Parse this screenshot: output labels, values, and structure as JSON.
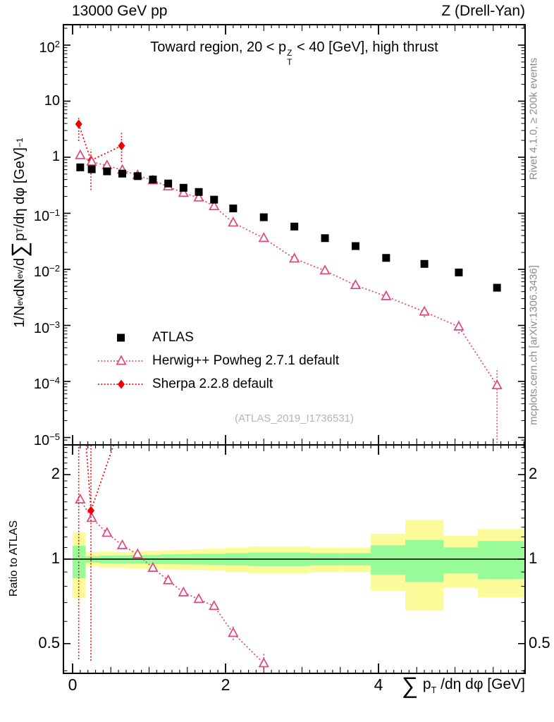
{
  "header": {
    "beam": "13000 GeV pp",
    "process": "Z (Drell-Yan)"
  },
  "side_notes": {
    "top": "Rivet 4.1.0, ≥ 200k events",
    "bottom": "mcplots.cern.ch [arXiv:1306.3436]"
  },
  "watermark": "(ATLAS_2019_I1736531)",
  "titles": {
    "main_parts": [
      {
        "t": "Toward region, 20 < p"
      },
      {
        "c": "zstack",
        "top": "Z",
        "bot": "T"
      },
      {
        "t": " < 40 [GeV], high thrust"
      }
    ],
    "y_main_parts": [
      {
        "t": "1/N"
      },
      {
        "t": "ev",
        "c": "sub"
      },
      {
        "t": " dN"
      },
      {
        "t": "ev",
        "c": "sub"
      },
      {
        "t": "/d"
      },
      {
        "t": "∑",
        "c": "big"
      },
      {
        "t": " p"
      },
      {
        "t": "T",
        "c": "sub"
      },
      {
        "t": " /dη dφ  [GeV]"
      },
      {
        "t": "−1",
        "c": "sup"
      }
    ],
    "x_parts": [
      {
        "t": "∑",
        "c": "big"
      },
      {
        "t": " p"
      },
      {
        "t": "T",
        "c": "sub"
      },
      {
        "t": " /dη dφ [GeV]"
      }
    ],
    "ratio_y": "Ratio to ATLAS"
  },
  "legend": [
    {
      "label": "ATLAS",
      "marker": "square",
      "line": false
    },
    {
      "label": "Herwig++ Powheg 2.7.1 default",
      "marker": "triangle-open",
      "line": true
    },
    {
      "label": "Sherpa 2.2.8 default",
      "marker": "diamond",
      "line": true
    }
  ],
  "colors": {
    "atlas": "#000000",
    "herwig": "#e0457b",
    "sherpa": "#ee0000",
    "band_inner_green": "#97fb97",
    "band_outer_yellow": "#fbfb9a",
    "note_gray": "#8c8c8c",
    "watermark_gray": "#b5b5b5"
  },
  "axes": {
    "x_tick_labels": [
      {
        "v": 0,
        "t": "0"
      },
      {
        "v": 2,
        "t": "2"
      },
      {
        "v": 4,
        "t": "4"
      }
    ],
    "y_main_tick_labels": [
      {
        "v": 100,
        "base": "10",
        "exp": "2"
      },
      {
        "v": 10,
        "base": "10",
        "exp": ""
      },
      {
        "v": 1,
        "base": "1",
        "exp": ""
      },
      {
        "v": 0.1,
        "base": "10",
        "exp": "−1"
      },
      {
        "v": 0.01,
        "base": "10",
        "exp": "−2"
      },
      {
        "v": 0.001,
        "base": "10",
        "exp": "−3"
      },
      {
        "v": 0.0001,
        "base": "10",
        "exp": "−4"
      },
      {
        "v": 1e-05,
        "base": "10",
        "exp": "−5"
      }
    ],
    "ratio_tick_labels": [
      {
        "v": 2,
        "t": "2"
      },
      {
        "v": 1,
        "t": "1"
      },
      {
        "v": 0.5,
        "t": "0.5"
      }
    ]
  },
  "chart_data": {
    "type": "scatter",
    "title": "Toward region, 20 < pT^Z < 40 [GeV], high thrust",
    "xlabel": "Sum pT /deta dphi [GeV]",
    "ylabel": "1/N_ev dN_ev/dSum pT /deta dphi [GeV]^-1",
    "ratio_ylabel": "Ratio to ATLAS",
    "x_axis": {
      "scale": "linear",
      "min": -0.12,
      "max": 5.92,
      "labeled_ticks": [
        0,
        2,
        4
      ]
    },
    "y_axis_main": {
      "scale": "log",
      "min": 7.5e-06,
      "max": 230,
      "labeled_decades": [
        2,
        1,
        0,
        -1,
        -2,
        -3,
        -4,
        -5
      ]
    },
    "y_axis_ratio": {
      "scale": "log",
      "min": 0.392,
      "max": 2.55,
      "labeled_ticks": [
        2,
        1,
        0.5
      ]
    },
    "series": [
      {
        "name": "ATLAS",
        "marker": "square",
        "line": false,
        "x": [
          0.1,
          0.25,
          0.45,
          0.65,
          0.85,
          1.05,
          1.25,
          1.45,
          1.65,
          1.85,
          2.1,
          2.5,
          2.9,
          3.3,
          3.7,
          4.1,
          4.6,
          5.05,
          5.55
        ],
        "y": [
          0.66,
          0.61,
          0.56,
          0.51,
          0.46,
          0.4,
          0.34,
          0.285,
          0.24,
          0.175,
          0.122,
          0.085,
          0.058,
          0.036,
          0.026,
          0.016,
          0.0125,
          0.0088,
          0.0047
        ]
      },
      {
        "name": "Herwig++ Powheg 2.7.1 default",
        "marker": "triangle-open",
        "line": "dotted",
        "x": [
          0.1,
          0.25,
          0.45,
          0.65,
          0.85,
          1.05,
          1.25,
          1.45,
          1.65,
          1.85,
          2.1,
          2.5,
          2.9,
          3.3,
          3.7,
          4.1,
          4.6,
          5.05,
          5.55
        ],
        "y": [
          1.08,
          0.83,
          0.71,
          0.59,
          0.475,
          0.385,
          0.3,
          0.23,
          0.19,
          0.133,
          0.068,
          0.036,
          0.0155,
          0.0095,
          0.0052,
          0.0033,
          0.00175,
          0.00095,
          8.5e-05
        ],
        "err_lo": [
          null,
          null,
          null,
          null,
          null,
          null,
          null,
          null,
          null,
          null,
          null,
          null,
          null,
          null,
          null,
          null,
          0.0014,
          0.00072,
          8e-06
        ],
        "err_hi": [
          null,
          null,
          null,
          null,
          null,
          null,
          null,
          null,
          null,
          null,
          null,
          null,
          null,
          null,
          null,
          null,
          0.0021,
          0.00122,
          0.00017
        ]
      },
      {
        "name": "Sherpa 2.2.8 default",
        "marker": "diamond",
        "line": "dotted",
        "x": [
          0.08,
          0.24,
          0.64
        ],
        "y": [
          3.9,
          0.88,
          1.6
        ],
        "err_lo": [
          1.95,
          0.26,
          0.82
        ],
        "err_hi": [
          5.4,
          1.39,
          2.74
        ]
      }
    ],
    "ratio": {
      "reference_line": 1,
      "herwig": {
        "x": [
          0.1,
          0.25,
          0.45,
          0.65,
          0.85,
          1.05,
          1.25,
          1.45,
          1.65,
          1.85,
          2.1,
          2.5
        ],
        "r": [
          1.63,
          1.4,
          1.24,
          1.12,
          1.04,
          0.93,
          0.84,
          0.76,
          0.72,
          0.68,
          0.545,
          0.425
        ],
        "err_lo": [
          null,
          null,
          null,
          null,
          null,
          null,
          null,
          null,
          null,
          null,
          0.515,
          0.39
        ],
        "err_hi": [
          null,
          null,
          null,
          null,
          null,
          null,
          null,
          null,
          null,
          null,
          0.575,
          0.46
        ]
      },
      "sherpa": {
        "x": [
          0.08,
          0.24,
          0.64
        ],
        "r": [
          5.9,
          1.49,
          3.08
        ],
        "err_lo": [
          0.44,
          0.435,
          null
        ],
        "err_hi": [
          9,
          9,
          null
        ],
        "visible_point_index": 1
      },
      "uncertainty_bands": [
        {
          "x0": 0.0,
          "x1": 0.17,
          "y_lo": 0.726,
          "y_hi": 1.246,
          "g_lo": 0.855,
          "g_hi": 1.116
        },
        {
          "x0": 0.17,
          "x1": 0.35,
          "y_lo": 0.942,
          "y_hi": 1.06,
          "g_lo": 0.972,
          "g_hi": 1.025
        },
        {
          "x0": 0.35,
          "x1": 0.55,
          "y_lo": 0.93,
          "y_hi": 1.065,
          "g_lo": 0.965,
          "g_hi": 1.03
        },
        {
          "x0": 0.55,
          "x1": 0.75,
          "y_lo": 0.93,
          "y_hi": 1.06,
          "g_lo": 0.965,
          "g_hi": 1.03
        },
        {
          "x0": 0.75,
          "x1": 0.95,
          "y_lo": 0.925,
          "y_hi": 1.065,
          "g_lo": 0.963,
          "g_hi": 1.033
        },
        {
          "x0": 0.95,
          "x1": 1.15,
          "y_lo": 0.92,
          "y_hi": 1.07,
          "g_lo": 0.96,
          "g_hi": 1.035
        },
        {
          "x0": 1.15,
          "x1": 1.35,
          "y_lo": 0.92,
          "y_hi": 1.075,
          "g_lo": 0.96,
          "g_hi": 1.04
        },
        {
          "x0": 1.35,
          "x1": 1.55,
          "y_lo": 0.915,
          "y_hi": 1.08,
          "g_lo": 0.958,
          "g_hi": 1.042
        },
        {
          "x0": 1.55,
          "x1": 1.75,
          "y_lo": 0.915,
          "y_hi": 1.085,
          "g_lo": 0.957,
          "g_hi": 1.045
        },
        {
          "x0": 1.75,
          "x1": 2.0,
          "y_lo": 0.91,
          "y_hi": 1.09,
          "g_lo": 0.955,
          "g_hi": 1.045
        },
        {
          "x0": 2.0,
          "x1": 2.3,
          "y_lo": 0.9,
          "y_hi": 1.1,
          "g_lo": 0.95,
          "g_hi": 1.05
        },
        {
          "x0": 2.3,
          "x1": 2.7,
          "y_lo": 0.89,
          "y_hi": 1.11,
          "g_lo": 0.945,
          "g_hi": 1.055
        },
        {
          "x0": 2.7,
          "x1": 3.1,
          "y_lo": 0.89,
          "y_hi": 1.11,
          "g_lo": 0.945,
          "g_hi": 1.055
        },
        {
          "x0": 3.1,
          "x1": 3.5,
          "y_lo": 0.9,
          "y_hi": 1.1,
          "g_lo": 0.95,
          "g_hi": 1.05
        },
        {
          "x0": 3.5,
          "x1": 3.9,
          "y_lo": 0.9,
          "y_hi": 1.1,
          "g_lo": 0.95,
          "g_hi": 1.05
        },
        {
          "x0": 3.9,
          "x1": 4.35,
          "y_lo": 0.77,
          "y_hi": 1.23,
          "g_lo": 0.88,
          "g_hi": 1.12
        },
        {
          "x0": 4.35,
          "x1": 4.85,
          "y_lo": 0.655,
          "y_hi": 1.38,
          "g_lo": 0.83,
          "g_hi": 1.17
        },
        {
          "x0": 4.85,
          "x1": 5.3,
          "y_lo": 0.79,
          "y_hi": 1.21,
          "g_lo": 0.89,
          "g_hi": 1.1
        },
        {
          "x0": 5.3,
          "x1": 5.92,
          "y_lo": 0.73,
          "y_hi": 1.28,
          "g_lo": 0.85,
          "g_hi": 1.16
        }
      ]
    }
  }
}
